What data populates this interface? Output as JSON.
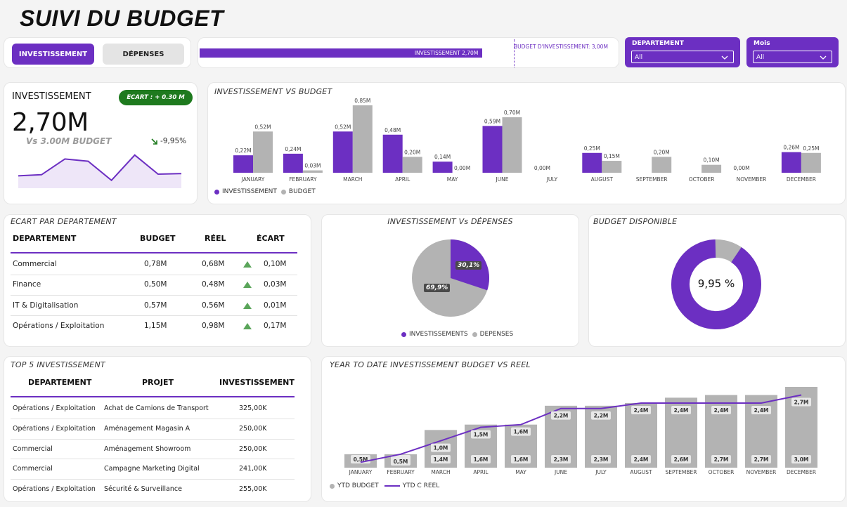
{
  "header": {
    "title": "SUIVI DU BUDGET"
  },
  "toggle": {
    "investissement_label": "INVESTISSEMENT",
    "depenses_label": "DÉPENSES"
  },
  "progress": {
    "bar_label": "INVESTISSEMENT 2,70M",
    "target_label": "BUDGET D'INVESTISSEMENT: 3,00M",
    "value": 2.7,
    "target": 3.0,
    "bar_color": "#6c2fc2"
  },
  "filters": {
    "departement": {
      "label": "DEPARTEMENT",
      "value": "All"
    },
    "mois": {
      "label": "Mois",
      "value": "All"
    }
  },
  "kpi": {
    "title": "INVESTISSEMENT",
    "value": "2,70M",
    "badge": "ECART : + 0.30 M",
    "subtitle": "Vs 3.00M BUDGET",
    "delta": "-9,95%",
    "sparkline": [
      0.22,
      0.24,
      0.52,
      0.48,
      0.14,
      0.59,
      0.25,
      0.26
    ]
  },
  "bar_chart": {
    "title": "INVESTISSEMENT VS BUDGET",
    "legend": [
      "INVESTISSEMENT",
      "BUDGET"
    ]
  },
  "table_dept": {
    "title": "ECART PAR DEPARTEMENT",
    "headers": [
      "DEPARTEMENT",
      "BUDGET",
      "RÉEL",
      "ÉCART"
    ],
    "rows": [
      [
        "Commercial",
        "0,78M",
        "0,68M",
        "0,10M"
      ],
      [
        "Finance",
        "0,50M",
        "0,48M",
        "0,03M"
      ],
      [
        "IT & Digitalisation",
        "0,57M",
        "0,56M",
        "0,01M"
      ],
      [
        "Opérations / Exploitation",
        "1,15M",
        "0,98M",
        "0,17M"
      ]
    ]
  },
  "pie": {
    "title": "INVESTISSEMENT Vs DÉPENSES",
    "inv_label": "30,1%",
    "dep_label": "69,9%",
    "inv_value": 30.1,
    "legend": [
      "INVESTISSEMENTS",
      "DEPENSES"
    ]
  },
  "donut": {
    "title": "BUDGET DISPONIBLE",
    "center": "9,95 %",
    "value": 90.05
  },
  "top5": {
    "title": "TOP 5 INVESTISSEMENT",
    "headers": [
      "DEPARTEMENT",
      "PROJET",
      "INVESTISSEMENT"
    ],
    "rows": [
      [
        "Opérations / Exploitation",
        "Achat de Camions de Transport",
        "325,00K"
      ],
      [
        "Opérations / Exploitation",
        "Aménagement Magasin A",
        "250,00K"
      ],
      [
        "Commercial",
        "Aménagement Showroom",
        "250,00K"
      ],
      [
        "Commercial",
        "Campagne Marketing Digital",
        "241,00K"
      ],
      [
        "Opérations / Exploitation",
        "Sécurité & Surveillance",
        "255,00K"
      ]
    ]
  },
  "ytd": {
    "title": "YEAR TO DATE INVESTISSEMENT BUDGET VS REEL",
    "legend": [
      "YTD BUDGET",
      "YTD C REEL"
    ]
  },
  "chart_data": [
    {
      "type": "bar",
      "title": "INVESTISSEMENT VS BUDGET",
      "categories": [
        "JANUARY",
        "FEBRUARY",
        "MARCH",
        "APRIL",
        "MAY",
        "JUNE",
        "JULY",
        "AUGUST",
        "SEPTEMBER",
        "OCTOBER",
        "NOVEMBER",
        "DECEMBER"
      ],
      "series": [
        {
          "name": "INVESTISSEMENT",
          "values": [
            0.22,
            0.24,
            0.52,
            0.48,
            0.14,
            0.59,
            0,
            0.25,
            0,
            0,
            0,
            0.26
          ],
          "labels": [
            "0,22M",
            "0,24M",
            "0,52M",
            "0,48M",
            "0,14M",
            "0,59M",
            "0,00M",
            "0,25M",
            "",
            "",
            "0,00M",
            "0,26M"
          ]
        },
        {
          "name": "BUDGET",
          "values": [
            0.52,
            0.03,
            0.85,
            0.2,
            0.0,
            0.7,
            0,
            0.15,
            0.2,
            0.1,
            0,
            0.25
          ],
          "labels": [
            "0,52M",
            "0,03M",
            "0,85M",
            "0,20M",
            "0,00M",
            "0,70M",
            "",
            "0,15M",
            "0,20M",
            "0,10M",
            "",
            "0,25M"
          ]
        }
      ],
      "colors": [
        "#6c2fc2",
        "#b3b3b3"
      ]
    },
    {
      "type": "bar",
      "title": "YEAR TO DATE INVESTISSEMENT BUDGET VS REEL",
      "categories": [
        "JANUARY",
        "FEBRUARY",
        "MARCH",
        "APRIL",
        "MAY",
        "JUNE",
        "JULY",
        "AUGUST",
        "SEPTEMBER",
        "OCTOBER",
        "NOVEMBER",
        "DECEMBER"
      ],
      "series": [
        {
          "name": "YTD BUDGET",
          "values": [
            0.5,
            0.5,
            1.4,
            1.6,
            1.6,
            2.3,
            2.3,
            2.4,
            2.6,
            2.7,
            2.7,
            3.0
          ],
          "labels": [
            "0,5M",
            "0,5M",
            "1,4M",
            "1,6M",
            "1,6M",
            "2,3M",
            "2,3M",
            "2,4M",
            "2,6M",
            "2,7M",
            "2,7M",
            "3,0M"
          ]
        },
        {
          "name": "YTD C REEL",
          "values": [
            0.2,
            0.5,
            1.0,
            1.5,
            1.6,
            2.2,
            2.2,
            2.4,
            2.4,
            2.4,
            2.4,
            2.7
          ],
          "labels": [
            "",
            "0,5M",
            "1,0M",
            "1,5M",
            "1,6M",
            "2,2M",
            "2,2M",
            "2,4M",
            "2,4M",
            "2,4M",
            "2,4M",
            "2,7M"
          ]
        }
      ],
      "colors": [
        "#b3b3b3",
        "#6c2fc2"
      ]
    }
  ]
}
